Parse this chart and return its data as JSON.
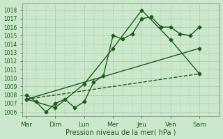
{
  "xlabel": "Pression niveau de la mer( hPa )",
  "days": [
    "Mar",
    "Dim",
    "Lun",
    "Mer",
    "Jeu",
    "Ven",
    "Sam"
  ],
  "day_positions": [
    0,
    1,
    2,
    3,
    4,
    5,
    6
  ],
  "xlim": [
    -0.15,
    6.7
  ],
  "ylim": [
    1005.5,
    1018.8
  ],
  "yticks": [
    1006,
    1007,
    1008,
    1009,
    1010,
    1011,
    1012,
    1013,
    1014,
    1015,
    1016,
    1017,
    1018
  ],
  "bg_color": "#cce8cc",
  "grid_color": "#aacaaa",
  "line_color": "#1a5c1a",
  "series": [
    {
      "x": [
        0,
        0.33,
        0.67,
        1.0,
        1.33,
        1.67,
        2.0,
        2.33,
        2.67,
        3.0,
        3.33,
        3.67,
        4.0,
        4.33,
        4.67,
        5.0,
        5.33,
        5.67,
        6.0
      ],
      "y": [
        1008.0,
        1007.2,
        1006.0,
        1007.0,
        1007.5,
        1006.5,
        1007.2,
        1009.5,
        1010.3,
        1015.0,
        1014.6,
        1015.2,
        1017.0,
        1017.2,
        1016.0,
        1016.0,
        1015.2,
        1015.0,
        1016.0
      ],
      "marker": "D",
      "markersize": 2.5,
      "linewidth": 1.0,
      "linestyle": "-"
    },
    {
      "x": [
        0,
        1,
        2,
        3,
        4,
        5,
        6
      ],
      "y": [
        1007.5,
        1006.5,
        1009.3,
        1013.5,
        1018.0,
        1014.5,
        1010.5
      ],
      "marker": "D",
      "markersize": 2.5,
      "linewidth": 1.0,
      "linestyle": "-"
    },
    {
      "x": [
        0,
        6
      ],
      "y": [
        1007.5,
        1013.5
      ],
      "marker": "D",
      "markersize": 2.5,
      "linewidth": 1.0,
      "linestyle": "-"
    },
    {
      "x": [
        0,
        6
      ],
      "y": [
        1007.5,
        1010.5
      ],
      "marker": "D",
      "markersize": 2.0,
      "linewidth": 1.0,
      "linestyle": "--"
    }
  ]
}
